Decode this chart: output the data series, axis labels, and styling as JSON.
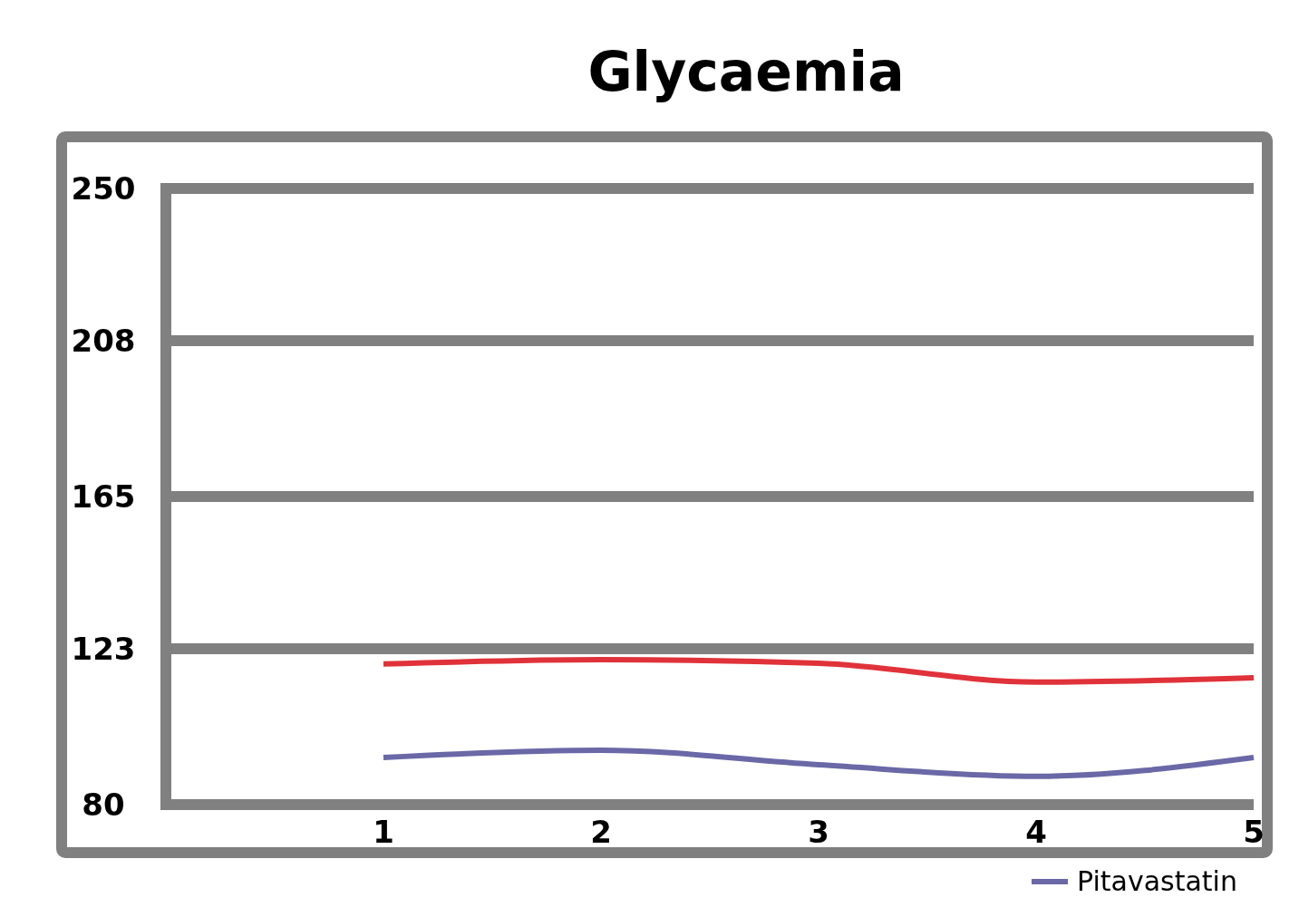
{
  "chart_data": {
    "type": "line",
    "title": "Glycaemia",
    "x": [
      1,
      2,
      3,
      4,
      5
    ],
    "xlim": [
      0,
      5
    ],
    "xticks": [
      1,
      2,
      3,
      4,
      5
    ],
    "ylim": [
      80,
      250
    ],
    "yticks": [
      80,
      123,
      165,
      208,
      250
    ],
    "grid": "y",
    "legend": "bottom right",
    "series": [
      {
        "color": "#e0323a",
        "values": [
          118.8,
          120,
          119,
          113.8,
          115
        ]
      },
      {
        "name": "Pitavastatin",
        "color": "#6a68a6",
        "values": [
          93,
          95,
          91,
          87.8,
          93
        ]
      }
    ]
  }
}
